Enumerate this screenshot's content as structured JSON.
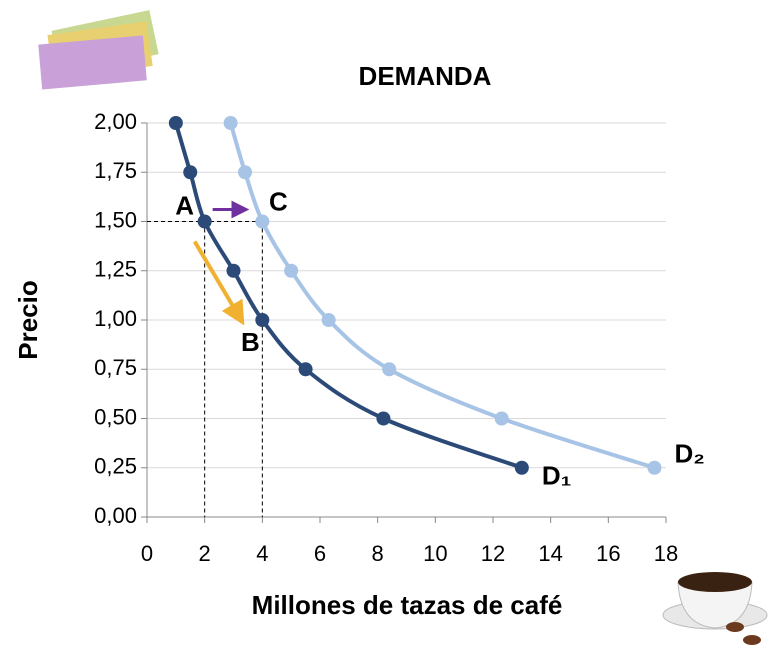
{
  "chart_data": {
    "type": "line",
    "title": "DEMANDA",
    "x_label": "Millones de tazas de café",
    "y_label": "Precio",
    "xlim": [
      0,
      18
    ],
    "xticks": [
      0,
      2,
      4,
      6,
      8,
      10,
      12,
      14,
      16,
      18
    ],
    "ylim": [
      0,
      2
    ],
    "yticks": [
      {
        "value": 0,
        "label": "0,00"
      },
      {
        "value": 0.25,
        "label": "0,25"
      },
      {
        "value": 0.5,
        "label": "0,50"
      },
      {
        "value": 0.75,
        "label": "0,75"
      },
      {
        "value": 1,
        "label": "1,00"
      },
      {
        "value": 1.25,
        "label": "1,25"
      },
      {
        "value": 1.5,
        "label": "1,50"
      },
      {
        "value": 1.75,
        "label": "1,75"
      },
      {
        "value": 2,
        "label": "2,00"
      }
    ],
    "grid": true,
    "series": [
      {
        "name": "D₁",
        "color": "#2b4a78",
        "x": [
          1.0,
          1.5,
          2,
          3,
          4,
          5.5,
          8.2,
          13.0
        ],
        "values": [
          2,
          1.75,
          1.5,
          1.25,
          1,
          0.75,
          0.5,
          0.25
        ]
      },
      {
        "name": "D₂",
        "color": "#a7c3e6",
        "x": [
          2.9,
          3.4,
          4,
          5,
          6.3,
          8.4,
          12.3,
          17.6
        ],
        "values": [
          2,
          1.75,
          1.5,
          1.25,
          1,
          0.75,
          0.5,
          0.25
        ]
      }
    ],
    "annotations": [
      "A",
      "B",
      "C"
    ]
  }
}
